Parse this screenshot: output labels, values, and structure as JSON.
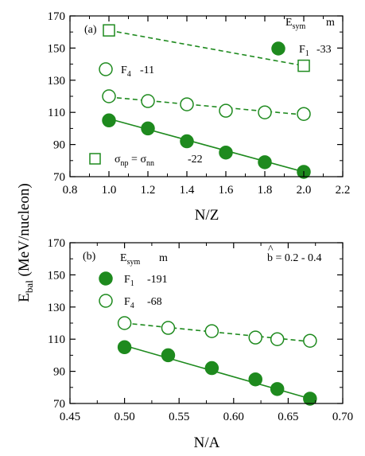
{
  "chart_data": [
    {
      "type": "scatter",
      "panel_label": "(a)",
      "xlabel": "N/Z",
      "ylabel_main": "E",
      "ylabel_sub": "bal",
      "ylabel_rest": " (MeV/nucleon)",
      "xlim": [
        0.8,
        2.2
      ],
      "ylim": [
        70,
        170
      ],
      "xticks": [
        "0.8",
        "1.0",
        "1.2",
        "1.4",
        "1.6",
        "1.8",
        "2.0",
        "2.2"
      ],
      "yticks": [
        "70",
        "90",
        "110",
        "130",
        "150",
        "170"
      ],
      "xtick_values": [
        0.8,
        1.0,
        1.2,
        1.4,
        1.6,
        1.8,
        2.0,
        2.2
      ],
      "ytick_values": [
        70,
        90,
        110,
        130,
        150,
        170
      ],
      "legend_header_main": "E",
      "legend_header_sub": "sym",
      "legend_header_m": "m",
      "series": [
        {
          "name_main": "F",
          "name_sub": "1",
          "slope": "-33",
          "marker": "filled-circle",
          "line": "solid",
          "x": [
            1.0,
            1.2,
            1.4,
            1.6,
            1.8,
            2.0
          ],
          "y": [
            105,
            100,
            92,
            85,
            79,
            73
          ],
          "fit": [
            [
              1.0,
              106
            ],
            [
              2.0,
              73
            ]
          ]
        },
        {
          "name_main": "F",
          "name_sub": "4",
          "slope": "-11",
          "marker": "open-circle",
          "line": "dashed",
          "x": [
            1.0,
            1.2,
            1.4,
            1.6,
            1.8,
            2.0
          ],
          "y": [
            120,
            117,
            115,
            111,
            110,
            109
          ],
          "fit": [
            [
              1.0,
              119.5
            ],
            [
              2.0,
              108.5
            ]
          ]
        },
        {
          "name_main": "σ",
          "name_sub": "np",
          "name_mid": " = σ",
          "name_sub2": "nn",
          "slope": "-22",
          "marker": "open-square",
          "line": "dashed",
          "x": [
            1.0,
            2.0
          ],
          "y": [
            161,
            139
          ],
          "fit": [
            [
              1.0,
              161
            ],
            [
              2.0,
              139
            ]
          ]
        }
      ]
    },
    {
      "type": "scatter",
      "panel_label": "(b)",
      "xlabel": "N/A",
      "xlim": [
        0.45,
        0.7
      ],
      "ylim": [
        70,
        170
      ],
      "xticks": [
        "0.45",
        "0.50",
        "0.55",
        "0.60",
        "0.65",
        "0.70"
      ],
      "yticks": [
        "70",
        "90",
        "110",
        "130",
        "150",
        "170"
      ],
      "xtick_values": [
        0.45,
        0.5,
        0.55,
        0.6,
        0.65,
        0.7
      ],
      "ytick_values": [
        70,
        90,
        110,
        130,
        150,
        170
      ],
      "legend_header_main": "E",
      "legend_header_sub": "sym",
      "legend_header_m": "m",
      "annotation": "b = 0.2 - 0.4",
      "series": [
        {
          "name_main": "F",
          "name_sub": "1",
          "slope": "-191",
          "marker": "filled-circle",
          "line": "solid",
          "x": [
            0.5,
            0.54,
            0.58,
            0.62,
            0.64,
            0.67
          ],
          "y": [
            105,
            100,
            92,
            85,
            79,
            73
          ],
          "fit": [
            [
              0.5,
              106
            ],
            [
              0.67,
              73
            ]
          ]
        },
        {
          "name_main": "F",
          "name_sub": "4",
          "slope": "-68",
          "marker": "open-circle",
          "line": "dashed",
          "x": [
            0.5,
            0.54,
            0.58,
            0.62,
            0.64,
            0.67
          ],
          "y": [
            120,
            117,
            115,
            111,
            110,
            109
          ],
          "fit": [
            [
              0.5,
              120
            ],
            [
              0.67,
              108.5
            ]
          ]
        }
      ]
    }
  ],
  "colors": {
    "series_green": "#1e8a1e",
    "axis": "#000000"
  }
}
